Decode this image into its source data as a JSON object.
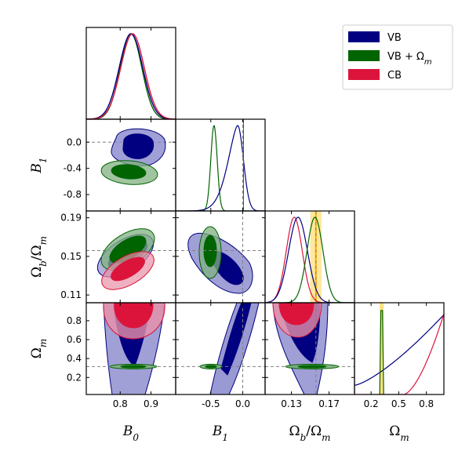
{
  "chart_data": {
    "type": "corner",
    "parameters": [
      {
        "key": "B0",
        "symbol": "B",
        "sub": "0"
      },
      {
        "key": "B1",
        "symbol": "B",
        "sub": "1"
      },
      {
        "key": "ratio",
        "symbol": "Ω",
        "sub": "b",
        "denom_symbol": "Ω",
        "denom_sub": "m"
      },
      {
        "key": "Om",
        "symbol": "Ω",
        "sub": "m"
      }
    ],
    "ticks": {
      "B0": [
        "0.8",
        "0.9"
      ],
      "B1_y": [
        "0.0",
        "-0.4",
        "-0.8"
      ],
      "B1_x": [
        "-0.5",
        "0.0"
      ],
      "ratio_y": [
        "0.19",
        "0.15",
        "0.11"
      ],
      "ratio_x": [
        "0.13",
        "0.17"
      ],
      "Om_y": [
        "0.8",
        "0.6",
        "0.4",
        "0.2"
      ],
      "Om_x": [
        "0.2",
        "0.5",
        "0.8"
      ]
    },
    "ranges": {
      "B0": [
        0.69,
        0.98
      ],
      "B1": [
        -1.05,
        0.35
      ],
      "ratio": [
        0.102,
        0.197
      ],
      "Om": [
        0.02,
        0.99
      ]
    },
    "reference_lines": {
      "B1": 0.0,
      "ratio": 0.156,
      "Om": 0.315
    },
    "prior_band": {
      "param": "ratio",
      "range": [
        0.15,
        0.162
      ],
      "color": "#ffd34d"
    },
    "series": [
      {
        "name": "VB",
        "color": "#000080",
        "fill": "#8080c8",
        "mean": {
          "B0": 0.835,
          "B1": -0.08,
          "ratio": 0.137,
          "Om": 0.6
        },
        "sd": {
          "B0": 0.038,
          "B1": 0.1
        }
      },
      {
        "name": "VB + Ω",
        "name_sub": "m",
        "color": "#006400",
        "fill": "#80b080",
        "mean": {
          "B0": 0.835,
          "B1": -0.45,
          "ratio": 0.155,
          "Om": 0.315
        },
        "sd": {
          "B0": 0.035,
          "B1": 0.05
        }
      },
      {
        "name": "CB",
        "color": "#dc143c",
        "fill": "#e890a8",
        "mean": {
          "B0": 0.84,
          "ratio": 0.135,
          "Om": 0.95
        },
        "sd": {
          "B0": 0.038
        }
      }
    ],
    "legend": "top-right",
    "grid": false
  }
}
